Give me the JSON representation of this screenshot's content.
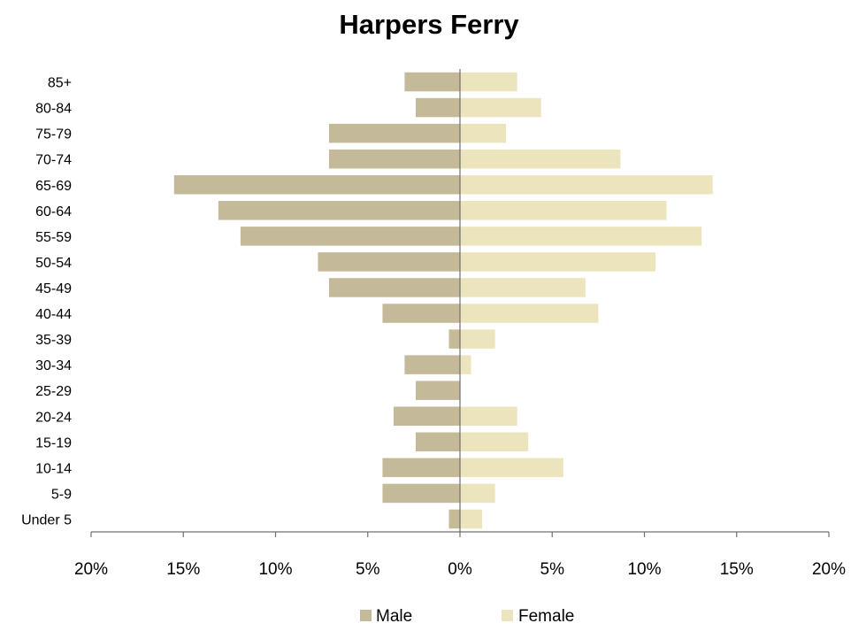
{
  "chart_data": {
    "type": "bar",
    "orientation": "horizontal",
    "title": "Harpers Ferry",
    "categories": [
      "Under 5",
      "5-9",
      "10-14",
      "15-19",
      "20-24",
      "25-29",
      "30-34",
      "35-39",
      "40-44",
      "45-49",
      "50-54",
      "55-59",
      "60-64",
      "65-69",
      "70-74",
      "75-79",
      "80-84",
      "85+"
    ],
    "series": [
      {
        "name": "Male",
        "color": "#c4b998",
        "values": [
          -0.6,
          -4.2,
          -4.2,
          -2.4,
          -3.6,
          -2.4,
          -3.0,
          -0.6,
          -4.2,
          -7.1,
          -7.7,
          -11.9,
          -13.1,
          -15.5,
          -7.1,
          -7.1,
          -2.4,
          -3.0
        ]
      },
      {
        "name": "Female",
        "color": "#ebe4bc",
        "values": [
          1.2,
          1.9,
          5.6,
          3.7,
          3.1,
          0.0,
          0.6,
          1.9,
          7.5,
          6.8,
          10.6,
          13.1,
          11.2,
          13.7,
          8.7,
          2.5,
          4.4,
          3.1
        ]
      }
    ],
    "x_ticks": [
      "20%",
      "15%",
      "10%",
      "5%",
      "0%",
      "5%",
      "10%",
      "15%",
      "20%"
    ],
    "xlim": [
      -20,
      20
    ],
    "legend_position": "bottom",
    "grid": false
  }
}
